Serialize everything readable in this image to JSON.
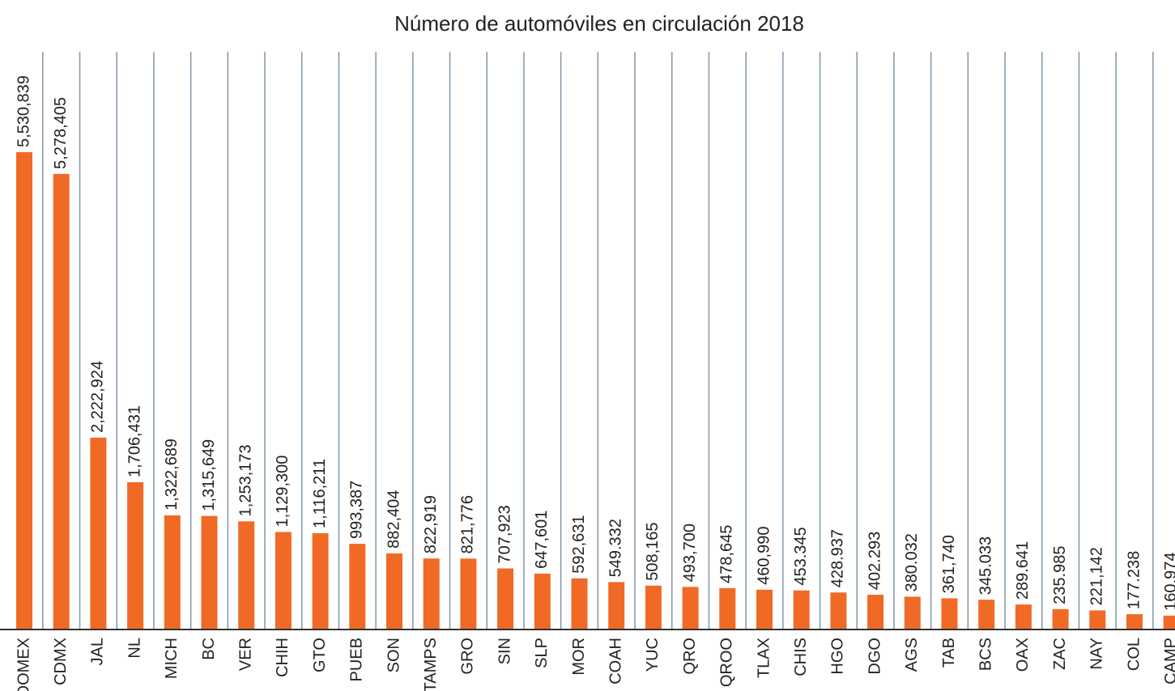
{
  "chart_data": {
    "type": "bar",
    "title": "Número de automóviles en circulación 2018",
    "categories": [
      "EDOMEX",
      "CDMX",
      "JAL",
      "NL",
      "MICH",
      "BC",
      "VER",
      "CHIH",
      "GTO",
      "PUEB",
      "SON",
      "TAMPS",
      "GRO",
      "SIN",
      "SLP",
      "MOR",
      "COAH",
      "YUC",
      "QRO",
      "QROO",
      "TLAX",
      "CHIS",
      "HGO",
      "DGO",
      "AGS",
      "TAB",
      "BCS",
      "OAX",
      "ZAC",
      "NAY",
      "COL",
      "CAMP"
    ],
    "values": [
      5530839,
      5278405,
      2222924,
      1706431,
      1322689,
      1315649,
      1253173,
      1129300,
      1116211,
      993387,
      882404,
      822919,
      821776,
      707923,
      647601,
      592631,
      549332,
      508165,
      493700,
      478645,
      460990,
      453345,
      428937,
      402293,
      380032,
      361740,
      345033,
      289641,
      235985,
      221142,
      177238,
      160974
    ],
    "value_labels": [
      "5,530,839",
      "5,278,405",
      "2,222,924",
      "1,706,431",
      "1,322,689",
      "1,315,649",
      "1,253,173",
      "1,129,300",
      "1,116,211",
      "993,387",
      "882,404",
      "822,919",
      "821,776",
      "707,923",
      "647,601",
      "592,631",
      "549.332",
      "508,165",
      "493,700",
      "478,645",
      "460,990",
      "453.345",
      "428.937",
      "402.293",
      "380.032",
      "361,740",
      "345.033",
      "289.641",
      "235.985",
      "221,142",
      "177.238",
      "160,974"
    ],
    "color": "#f06a26",
    "ylim": [
      0,
      6750000
    ]
  }
}
